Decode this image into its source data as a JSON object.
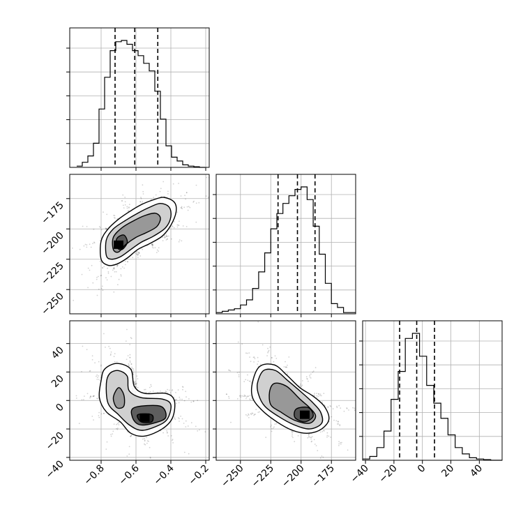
{
  "chart_data": {
    "type": "corner",
    "parameters": [
      {
        "range": [
          -0.98,
          -0.18
        ],
        "ticks": [
          -0.8,
          -0.6,
          -0.4,
          -0.2
        ],
        "tick_labels": [
          "−0.8",
          "−0.6",
          "−0.4",
          "−0.2"
        ]
      },
      {
        "range": [
          -270,
          -155
        ],
        "ticks": [
          -250,
          -225,
          -200,
          -175
        ],
        "tick_labels": [
          "−250",
          "−225",
          "−200",
          "−175"
        ]
      },
      {
        "range": [
          -42,
          56
        ],
        "ticks": [
          -40,
          -20,
          0,
          20,
          40
        ],
        "tick_labels": [
          "−40",
          "−20",
          "0",
          "20",
          "40"
        ]
      }
    ],
    "marginals": [
      {
        "param": 0,
        "bin_edges": [
          -0.94,
          -0.908,
          -0.876,
          -0.844,
          -0.812,
          -0.78,
          -0.748,
          -0.716,
          -0.684,
          -0.652,
          -0.62,
          -0.588,
          -0.556,
          -0.524,
          -0.492,
          -0.46,
          -0.428,
          -0.396,
          -0.364,
          -0.332,
          -0.3,
          -0.268,
          -0.236,
          -0.204
        ],
        "counts": [
          0.01,
          0.04,
          0.09,
          0.19,
          0.46,
          0.71,
          0.92,
          0.99,
          1.0,
          0.97,
          0.92,
          0.88,
          0.82,
          0.76,
          0.6,
          0.38,
          0.17,
          0.08,
          0.05,
          0.02,
          0.01,
          0.005,
          0.0
        ],
        "quantiles": [
          -0.72,
          -0.607,
          -0.475
        ]
      },
      {
        "param": 1,
        "bin_edges": [
          -270,
          -265,
          -260,
          -255,
          -250,
          -245,
          -240,
          -235,
          -230,
          -225,
          -220,
          -215,
          -210,
          -205,
          -200,
          -195,
          -190,
          -185,
          -180,
          -175,
          -170,
          -165,
          -160,
          -155
        ],
        "counts": [
          0.01,
          0.02,
          0.03,
          0.04,
          0.07,
          0.11,
          0.2,
          0.33,
          0.48,
          0.67,
          0.79,
          0.87,
          0.93,
          0.98,
          1.0,
          0.9,
          0.69,
          0.47,
          0.24,
          0.08,
          0.05,
          0.01,
          0.01
        ],
        "quantiles": [
          -219,
          -203,
          -188.5
        ]
      },
      {
        "param": 2,
        "bin_edges": [
          -42,
          -37,
          -32,
          -27,
          -22,
          -17,
          -12,
          -7,
          -2,
          3,
          8,
          13,
          18,
          23,
          28,
          33,
          38,
          43,
          48,
          53,
          56
        ],
        "counts": [
          0.01,
          0.03,
          0.1,
          0.23,
          0.48,
          0.7,
          0.96,
          1.0,
          0.82,
          0.59,
          0.45,
          0.33,
          0.2,
          0.1,
          0.05,
          0.02,
          0.01,
          0.005,
          0.0,
          0.0
        ],
        "quantiles": [
          -16,
          -4,
          8.5
        ]
      }
    ],
    "joint": [
      {
        "params": [
          0,
          1
        ],
        "density_peak": [
          -0.7,
          -213
        ],
        "contours": [
          [
            [
              -0.8,
              -225
            ],
            [
              -0.8,
              -210
            ],
            [
              -0.76,
              -200
            ],
            [
              -0.7,
              -192
            ],
            [
              -0.64,
              -186
            ],
            [
              -0.57,
              -180
            ],
            [
              -0.5,
              -176
            ],
            [
              -0.44,
              -174
            ],
            [
              -0.38,
              -178
            ],
            [
              -0.37,
              -186
            ],
            [
              -0.4,
              -197
            ],
            [
              -0.45,
              -206
            ],
            [
              -0.52,
              -212
            ],
            [
              -0.59,
              -217
            ],
            [
              -0.65,
              -224
            ],
            [
              -0.71,
              -229
            ],
            [
              -0.76,
              -230
            ]
          ],
          [
            [
              -0.77,
              -222
            ],
            [
              -0.77,
              -209
            ],
            [
              -0.73,
              -200
            ],
            [
              -0.66,
              -193
            ],
            [
              -0.59,
              -187
            ],
            [
              -0.52,
              -182
            ],
            [
              -0.46,
              -179
            ],
            [
              -0.41,
              -182
            ],
            [
              -0.4,
              -190
            ],
            [
              -0.43,
              -199
            ],
            [
              -0.5,
              -206
            ],
            [
              -0.57,
              -211
            ],
            [
              -0.63,
              -217
            ],
            [
              -0.69,
              -223
            ],
            [
              -0.74,
              -225
            ]
          ],
          [
            [
              -0.73,
              -217
            ],
            [
              -0.73,
              -207
            ],
            [
              -0.68,
              -199
            ],
            [
              -0.61,
              -193
            ],
            [
              -0.55,
              -189
            ],
            [
              -0.49,
              -187
            ],
            [
              -0.46,
              -191
            ],
            [
              -0.48,
              -198
            ],
            [
              -0.54,
              -203
            ],
            [
              -0.6,
              -207
            ],
            [
              -0.66,
              -213
            ],
            [
              -0.7,
              -219
            ]
          ],
          [
            [
              -0.71,
              -215
            ],
            [
              -0.71,
              -208
            ],
            [
              -0.67,
              -205
            ],
            [
              -0.65,
              -211
            ],
            [
              -0.68,
              -217
            ]
          ]
        ]
      },
      {
        "params": [
          0,
          2
        ],
        "density_peak": [
          -0.55,
          -12
        ],
        "contours": [
          [
            [
              -0.8,
              14
            ],
            [
              -0.78,
              22
            ],
            [
              -0.71,
              26
            ],
            [
              -0.63,
              22
            ],
            [
              -0.61,
              10
            ],
            [
              -0.55,
              5
            ],
            [
              -0.43,
              5
            ],
            [
              -0.38,
              0
            ],
            [
              -0.39,
              -12
            ],
            [
              -0.45,
              -20
            ],
            [
              -0.55,
              -25
            ],
            [
              -0.63,
              -23
            ],
            [
              -0.69,
              -15
            ],
            [
              -0.77,
              -8
            ],
            [
              -0.81,
              2
            ]
          ],
          [
            [
              -0.77,
              12
            ],
            [
              -0.75,
              19
            ],
            [
              -0.7,
              21
            ],
            [
              -0.65,
              17
            ],
            [
              -0.64,
              7
            ],
            [
              -0.57,
              2
            ],
            [
              -0.45,
              1
            ],
            [
              -0.4,
              -3
            ],
            [
              -0.42,
              -13
            ],
            [
              -0.48,
              -18
            ],
            [
              -0.57,
              -21
            ],
            [
              -0.64,
              -17
            ],
            [
              -0.7,
              -10
            ],
            [
              -0.76,
              -2
            ]
          ],
          [
            [
              -0.7,
              9
            ],
            [
              -0.73,
              2
            ],
            [
              -0.71,
              -5
            ],
            [
              -0.67,
              -4
            ],
            [
              -0.67,
              4
            ]
          ],
          [
            [
              -0.61,
              -5
            ],
            [
              -0.46,
              -4
            ],
            [
              -0.43,
              -12
            ],
            [
              -0.5,
              -16
            ],
            [
              -0.58,
              -17
            ],
            [
              -0.62,
              -12
            ]
          ],
          [
            [
              -0.59,
              -10
            ],
            [
              -0.51,
              -10
            ],
            [
              -0.51,
              -15
            ],
            [
              -0.57,
              -15
            ]
          ]
        ]
      },
      {
        "params": [
          1,
          2
        ],
        "density_peak": [
          -197,
          -10
        ],
        "contours": [
          [
            [
              -240,
              13
            ],
            [
              -234,
              24
            ],
            [
              -222,
              25
            ],
            [
              -212,
              18
            ],
            [
              -201,
              9
            ],
            [
              -190,
              3
            ],
            [
              -181,
              -4
            ],
            [
              -177,
              -13
            ],
            [
              -183,
              -20
            ],
            [
              -194,
              -23
            ],
            [
              -207,
              -21
            ],
            [
              -220,
              -15
            ],
            [
              -232,
              -7
            ],
            [
              -240,
              2
            ]
          ],
          [
            [
              -236,
              12
            ],
            [
              -231,
              21
            ],
            [
              -221,
              21
            ],
            [
              -211,
              14
            ],
            [
              -200,
              6
            ],
            [
              -191,
              -1
            ],
            [
              -184,
              -8
            ],
            [
              -183,
              -16
            ],
            [
              -193,
              -20
            ],
            [
              -206,
              -17
            ],
            [
              -219,
              -11
            ],
            [
              -230,
              -4
            ],
            [
              -235,
              4
            ]
          ],
          [
            [
              -226,
              6
            ],
            [
              -222,
              12
            ],
            [
              -212,
              10
            ],
            [
              -201,
              1
            ],
            [
              -193,
              -5
            ],
            [
              -188,
              -11
            ],
            [
              -193,
              -16
            ],
            [
              -205,
              -14
            ],
            [
              -217,
              -8
            ],
            [
              -225,
              -3
            ]
          ],
          [
            [
              -204,
              -6
            ],
            [
              -194,
              -5
            ],
            [
              -190,
              -11
            ],
            [
              -197,
              -15
            ],
            [
              -205,
              -12
            ]
          ]
        ]
      }
    ],
    "grid": true,
    "legend": "none"
  }
}
